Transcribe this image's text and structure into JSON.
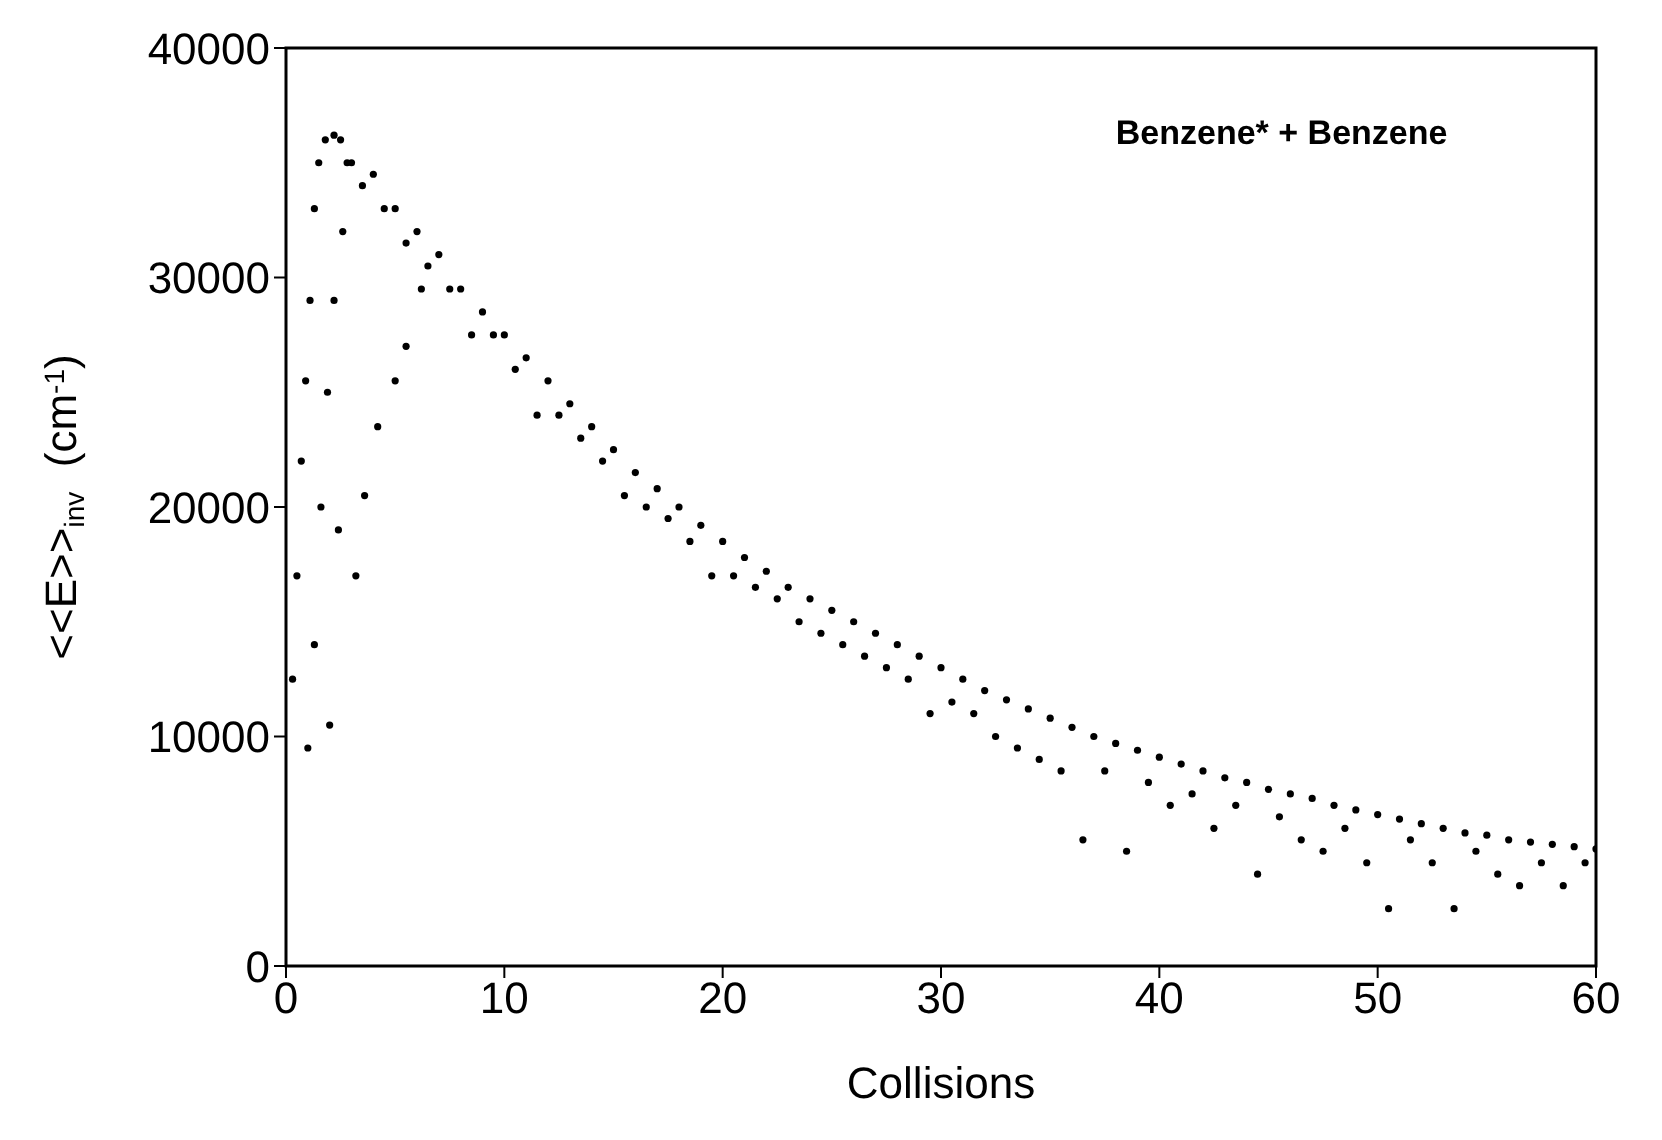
{
  "chart_data": {
    "type": "scatter",
    "xlabel": "Collisions",
    "ylabel": "<<E>>$_{inv}$  (cm$^{-1}$)",
    "annotations": [
      "Benzene* + Benzene"
    ],
    "xlim": [
      0,
      60
    ],
    "xticks": [
      0,
      10,
      20,
      30,
      40,
      50,
      60
    ],
    "ylim": [
      0,
      40000
    ],
    "yticks": [
      0,
      10000,
      20000,
      30000,
      40000
    ],
    "marker": "circle",
    "series": [
      {
        "color": "#000000",
        "x": [
          0.3,
          0.5,
          0.7,
          0.9,
          1.1,
          1.3,
          1.5,
          1.8,
          2.2,
          2.5,
          2.8,
          1.0,
          1.3,
          1.6,
          1.9,
          2.2,
          2.6,
          2.0,
          2.4,
          3.2,
          3.6,
          4.2,
          5.0,
          5.5,
          6.2,
          3,
          4,
          5,
          6,
          7,
          8,
          9,
          10,
          11,
          12,
          13,
          14,
          15,
          16,
          17,
          18,
          19,
          20,
          21,
          22,
          23,
          24,
          25,
          26,
          27,
          28,
          29,
          30,
          31,
          32,
          33,
          34,
          35,
          36,
          37,
          38,
          39,
          40,
          41,
          42,
          43,
          44,
          45,
          46,
          47,
          48,
          49,
          50,
          51,
          52,
          53,
          54,
          55,
          56,
          57,
          58,
          59,
          60,
          3.5,
          4.5,
          5.5,
          6.5,
          7.5,
          8.5,
          9.5,
          10.5,
          11.5,
          12.5,
          13.5,
          14.5,
          15.5,
          16.5,
          17.5,
          18.5,
          19.5,
          20.5,
          21.5,
          22.5,
          23.5,
          24.5,
          25.5,
          26.5,
          27.5,
          28.5,
          29.5,
          30.5,
          31.5,
          32.5,
          33.5,
          34.5,
          35.5,
          36.5,
          37.5,
          38.5,
          39.5,
          40.5,
          41.5,
          42.5,
          43.5,
          44.5,
          45.5,
          46.5,
          47.5,
          48.5,
          49.5,
          50.5,
          51.5,
          52.5,
          53.5,
          54.5,
          55.5,
          56.5,
          57.5,
          58.5,
          59.5
        ],
        "values": [
          12500,
          17000,
          22000,
          25500,
          29000,
          33000,
          35000,
          36000,
          36200,
          36000,
          35000,
          9500,
          14000,
          20000,
          25000,
          29000,
          32000,
          10500,
          19000,
          17000,
          20500,
          23500,
          25500,
          27000,
          29500,
          35000,
          34500,
          33000,
          32000,
          31000,
          29500,
          28500,
          27500,
          26500,
          25500,
          24500,
          23500,
          22500,
          21500,
          20800,
          20000,
          19200,
          18500,
          17800,
          17200,
          16500,
          16000,
          15500,
          15000,
          14500,
          14000,
          13500,
          13000,
          12500,
          12000,
          11600,
          11200,
          10800,
          10400,
          10000,
          9700,
          9400,
          9100,
          8800,
          8500,
          8200,
          8000,
          7700,
          7500,
          7300,
          7000,
          6800,
          6600,
          6400,
          6200,
          6000,
          5800,
          5700,
          5500,
          5400,
          5300,
          5200,
          5100,
          34000,
          33000,
          31500,
          30500,
          29500,
          27500,
          27500,
          26000,
          24000,
          24000,
          23000,
          22000,
          20500,
          20000,
          19500,
          18500,
          17000,
          17000,
          16500,
          16000,
          15000,
          14500,
          14000,
          13500,
          13000,
          12500,
          11000,
          11500,
          11000,
          10000,
          9500,
          9000,
          8500,
          5500,
          8500,
          5000,
          8000,
          7000,
          7500,
          6000,
          7000,
          4000,
          6500,
          5500,
          5000,
          6000,
          4500,
          2500,
          5500,
          4500,
          2500,
          5000,
          4000,
          3500,
          4500,
          3500,
          4500
        ]
      }
    ]
  }
}
